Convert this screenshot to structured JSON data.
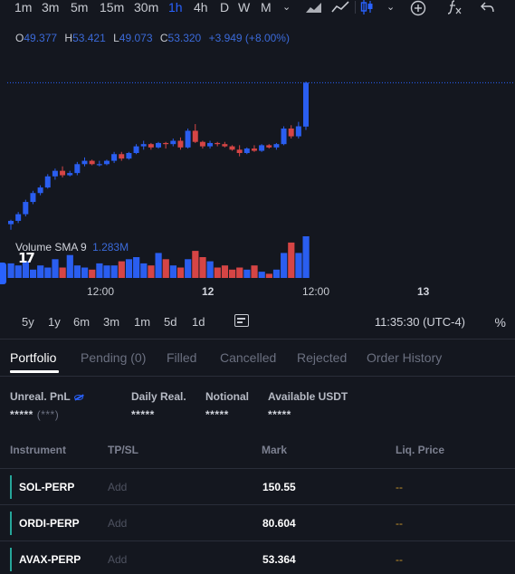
{
  "toolbar": {
    "timeframes": [
      "1m",
      "3m",
      "5m",
      "15m",
      "30m",
      "1h",
      "4h",
      "D",
      "W",
      "M"
    ],
    "active_timeframe": "1h"
  },
  "ohlc": {
    "o_key": "O",
    "o": "49.377",
    "h_key": "H",
    "h": "53.421",
    "l_key": "L",
    "l": "49.073",
    "c_key": "C",
    "c": "53.320",
    "change": "+3.949 (+8.00%)"
  },
  "volume": {
    "label": "Volume",
    "indicator": "SMA 9",
    "value": "1.283M"
  },
  "colors": {
    "up": "#2a5ef0",
    "down": "#d64545",
    "accent": "#2962ff",
    "liq": "#c9962b",
    "row_marker": "#26a69a"
  },
  "x_axis": {
    "labels": [
      "12:00",
      "12",
      "12:00",
      "13"
    ]
  },
  "range_bar": {
    "ranges": [
      "5y",
      "1y",
      "6m",
      "3m",
      "1m",
      "5d",
      "1d"
    ],
    "time": "11:35:30 (UTC-4)",
    "percent": "%"
  },
  "tabs": [
    "Portfolio",
    "Pending (0)",
    "Filled",
    "Cancelled",
    "Rejected",
    "Order History"
  ],
  "active_tab": "Portfolio",
  "summary": {
    "unreal_label": "Unreal. PnL",
    "unreal_value": "*****",
    "unreal_extra": "(***)",
    "daily_label": "Daily Real.",
    "daily_value": "*****",
    "notional_label": "Notional",
    "notional_value": "*****",
    "available_label": "Available USDT",
    "available_value": "*****"
  },
  "table": {
    "headers": [
      "Instrument",
      "TP/SL",
      "Mark",
      "Liq. Price"
    ],
    "rows": [
      {
        "instrument": "SOL-PERP",
        "tpsl": "Add",
        "mark": "150.55",
        "liq": "--"
      },
      {
        "instrument": "ORDI-PERP",
        "tpsl": "Add",
        "mark": "80.604",
        "liq": "--"
      },
      {
        "instrument": "AVAX-PERP",
        "tpsl": "Add",
        "mark": "53.364",
        "liq": "--"
      }
    ]
  },
  "chart_data": {
    "type": "candlestick",
    "last_close": 53.32,
    "candles": [
      {
        "o": 40.6,
        "h": 41.0,
        "l": 40.1,
        "c": 40.9
      },
      {
        "o": 40.9,
        "h": 41.7,
        "l": 40.7,
        "c": 41.5
      },
      {
        "o": 41.5,
        "h": 42.8,
        "l": 41.3,
        "c": 42.6
      },
      {
        "o": 42.6,
        "h": 43.6,
        "l": 42.4,
        "c": 43.4
      },
      {
        "o": 43.4,
        "h": 44.1,
        "l": 43.2,
        "c": 43.9
      },
      {
        "o": 43.9,
        "h": 45.1,
        "l": 43.8,
        "c": 44.9
      },
      {
        "o": 44.9,
        "h": 45.6,
        "l": 44.6,
        "c": 45.4
      },
      {
        "o": 45.4,
        "h": 45.8,
        "l": 44.8,
        "c": 45.0
      },
      {
        "o": 45.0,
        "h": 45.4,
        "l": 44.9,
        "c": 45.2
      },
      {
        "o": 45.2,
        "h": 46.2,
        "l": 45.0,
        "c": 46.0
      },
      {
        "o": 46.0,
        "h": 46.6,
        "l": 45.8,
        "c": 46.3
      },
      {
        "o": 46.3,
        "h": 46.4,
        "l": 45.9,
        "c": 46.0
      },
      {
        "o": 46.0,
        "h": 46.3,
        "l": 45.8,
        "c": 46.0
      },
      {
        "o": 46.0,
        "h": 46.4,
        "l": 45.9,
        "c": 46.3
      },
      {
        "o": 46.3,
        "h": 47.1,
        "l": 46.1,
        "c": 46.9
      },
      {
        "o": 46.9,
        "h": 47.1,
        "l": 46.3,
        "c": 46.5
      },
      {
        "o": 46.5,
        "h": 47.1,
        "l": 46.4,
        "c": 47.0
      },
      {
        "o": 47.0,
        "h": 47.8,
        "l": 46.9,
        "c": 47.6
      },
      {
        "o": 47.6,
        "h": 48.1,
        "l": 47.3,
        "c": 47.8
      },
      {
        "o": 47.8,
        "h": 47.9,
        "l": 47.3,
        "c": 47.5
      },
      {
        "o": 47.5,
        "h": 48.0,
        "l": 47.4,
        "c": 47.9
      },
      {
        "o": 47.9,
        "h": 48.0,
        "l": 47.4,
        "c": 47.8
      },
      {
        "o": 47.8,
        "h": 48.3,
        "l": 47.6,
        "c": 48.1
      },
      {
        "o": 48.1,
        "h": 48.4,
        "l": 47.3,
        "c": 47.5
      },
      {
        "o": 47.5,
        "h": 49.2,
        "l": 47.4,
        "c": 49.0
      },
      {
        "o": 49.0,
        "h": 49.6,
        "l": 47.9,
        "c": 48.0
      },
      {
        "o": 48.0,
        "h": 48.1,
        "l": 47.4,
        "c": 47.6
      },
      {
        "o": 47.6,
        "h": 48.1,
        "l": 47.4,
        "c": 47.9
      },
      {
        "o": 47.9,
        "h": 48.0,
        "l": 47.6,
        "c": 47.8
      },
      {
        "o": 47.8,
        "h": 48.0,
        "l": 47.5,
        "c": 47.6
      },
      {
        "o": 47.6,
        "h": 47.7,
        "l": 47.2,
        "c": 47.3
      },
      {
        "o": 47.3,
        "h": 47.7,
        "l": 46.7,
        "c": 47.0
      },
      {
        "o": 47.0,
        "h": 47.5,
        "l": 46.9,
        "c": 47.4
      },
      {
        "o": 47.4,
        "h": 47.7,
        "l": 47.1,
        "c": 47.2
      },
      {
        "o": 47.2,
        "h": 47.8,
        "l": 47.1,
        "c": 47.7
      },
      {
        "o": 47.7,
        "h": 47.8,
        "l": 47.4,
        "c": 47.5
      },
      {
        "o": 47.5,
        "h": 47.9,
        "l": 47.3,
        "c": 47.8
      },
      {
        "o": 47.8,
        "h": 49.4,
        "l": 47.7,
        "c": 49.2
      },
      {
        "o": 49.2,
        "h": 49.5,
        "l": 48.3,
        "c": 48.5
      },
      {
        "o": 48.5,
        "h": 49.8,
        "l": 48.3,
        "c": 49.4
      },
      {
        "o": 49.377,
        "h": 53.421,
        "l": 49.073,
        "c": 53.32
      }
    ],
    "volume": [
      0.35,
      0.3,
      0.4,
      0.2,
      0.3,
      0.25,
      0.45,
      0.25,
      0.55,
      0.3,
      0.25,
      0.2,
      0.35,
      0.3,
      0.3,
      0.4,
      0.45,
      0.5,
      0.35,
      0.3,
      0.6,
      0.45,
      0.3,
      0.25,
      0.45,
      0.65,
      0.5,
      0.4,
      0.25,
      0.3,
      0.2,
      0.25,
      0.2,
      0.3,
      0.15,
      0.1,
      0.2,
      0.6,
      0.85,
      0.6,
      1.0
    ],
    "y_range": [
      40.0,
      54.0
    ]
  }
}
